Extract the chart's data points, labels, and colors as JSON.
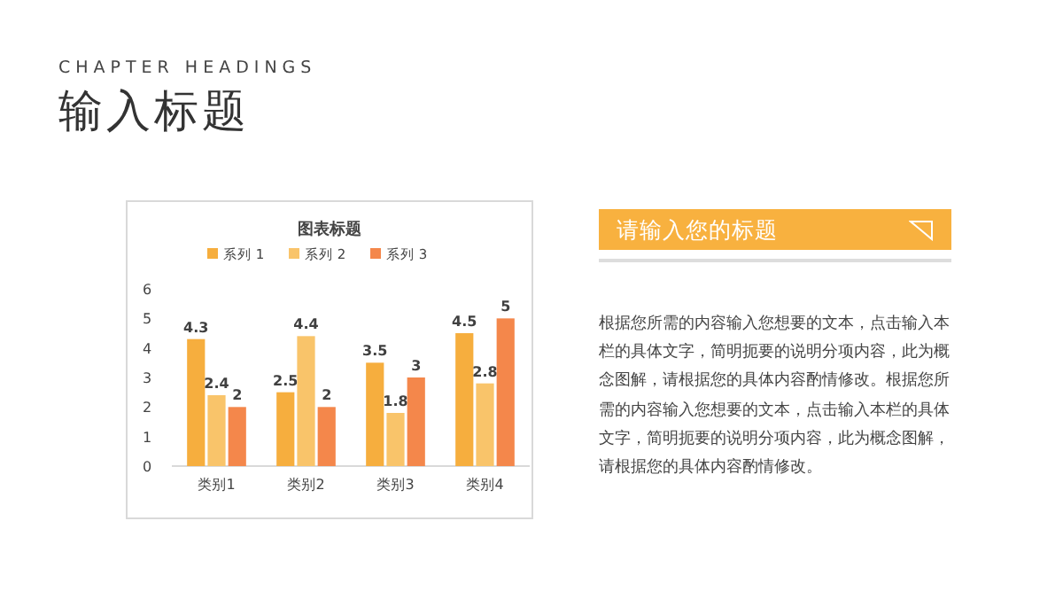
{
  "chart_data": {
    "type": "bar",
    "title": "图表标题",
    "categories": [
      "类别1",
      "类别2",
      "类别3",
      "类别4"
    ],
    "series": [
      {
        "name": "系列 1",
        "color": "#f6ae3e",
        "values": [
          4.3,
          2.5,
          3.5,
          4.5
        ]
      },
      {
        "name": "系列 2",
        "color": "#f9c46a",
        "values": [
          2.4,
          4.4,
          1.8,
          2.8
        ]
      },
      {
        "name": "系列 3",
        "color": "#f4874b",
        "values": [
          2,
          2,
          3,
          5
        ]
      }
    ],
    "ylim": [
      0,
      6
    ],
    "yticks": [
      0,
      1,
      2,
      3,
      4,
      5,
      6
    ],
    "grid": false,
    "legend": "top",
    "data_labels": true,
    "annotations": [
      "CHAPTER HEADINGS",
      "输入标题",
      "请输入您的标题",
      "根据您所需的内容输入您想要的文本，点击输入本栏的具体文字，简明扼要的说明分项内容，此为概念图解，请根据您的具体内容酌情修改。根据您所需的内容输入您想要的文本，点击输入本栏的具体文字，简明扼要的说明分项内容，此为概念图解，请根据您的具体内容酌情修改。"
    ]
  }
}
